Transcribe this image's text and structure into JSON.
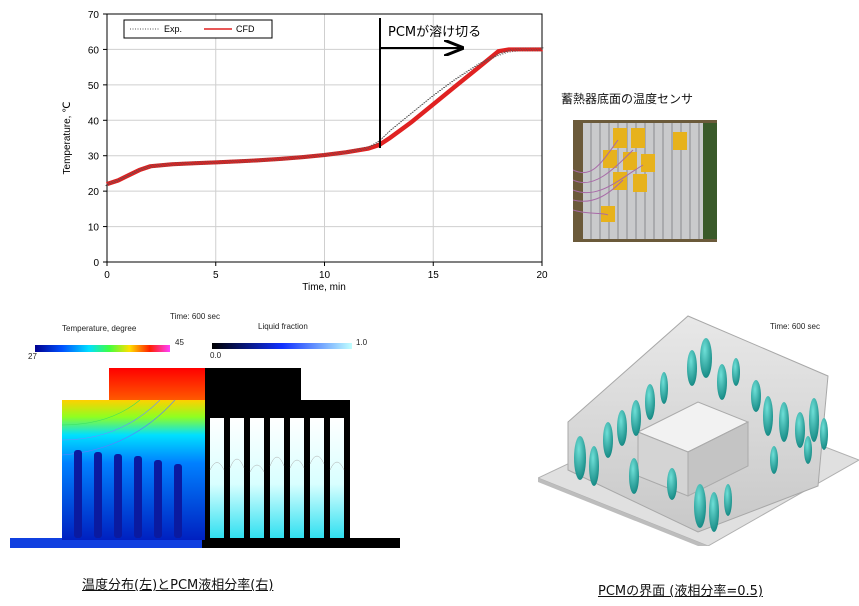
{
  "chart_data": {
    "type": "line",
    "xlabel": "Time, min",
    "ylabel": "Temperature, ℃",
    "xlim": [
      0,
      20
    ],
    "ylim": [
      0,
      70
    ],
    "xticks": [
      0,
      5,
      10,
      15,
      20
    ],
    "yticks": [
      0,
      10,
      20,
      30,
      40,
      50,
      60,
      70
    ],
    "grid": true,
    "legend_position": "top-left",
    "series": [
      {
        "name": "Exp.",
        "color": "#555555",
        "style": "dotted",
        "x": [
          0,
          0.5,
          1,
          1.5,
          2,
          3,
          4,
          5,
          6,
          7,
          8,
          9,
          10,
          11,
          12,
          12.5,
          13,
          14,
          15,
          16,
          17,
          18,
          18.5,
          19,
          20
        ],
        "y": [
          22,
          23,
          24.5,
          26,
          27,
          27.6,
          27.9,
          28.1,
          28.4,
          28.7,
          29.1,
          29.6,
          30.2,
          31,
          32.2,
          34,
          37,
          42,
          47,
          51.5,
          55.5,
          58.5,
          59.6,
          60,
          60
        ]
      },
      {
        "name": "CFD",
        "color": "#e02020",
        "style": "solid",
        "x": [
          0,
          0.5,
          1,
          1.5,
          2,
          3,
          4,
          5,
          6,
          7,
          8,
          9,
          10,
          11,
          12,
          12.5,
          13,
          14,
          15,
          16,
          17,
          18,
          18.5,
          19,
          20
        ],
        "y": [
          22,
          23,
          24.5,
          26,
          27,
          27.6,
          27.9,
          28.1,
          28.4,
          28.7,
          29.1,
          29.6,
          30.2,
          31,
          32,
          33,
          35,
          39.5,
          44.5,
          49.5,
          54.5,
          59.5,
          60,
          60,
          60
        ]
      }
    ],
    "annotation": {
      "text": "PCMが溶け切る",
      "x": 12.5
    }
  },
  "sensor_photo": {
    "title": "蓄熱器底面の温度センサ"
  },
  "temperature_panel": {
    "time_label": "Time: 600 sec",
    "temperature_legend": {
      "title": "Temperature, degree",
      "min": "27",
      "max": "45"
    },
    "liquid_legend": {
      "title": "Liquid fraction",
      "min": "0.0",
      "max": "1.0"
    },
    "caption": "温度分布(左)とPCM液相分率(右)"
  },
  "interface_panel": {
    "time_label": "Time: 600 sec",
    "caption": "PCMの界面 (液相分率=0.5)"
  },
  "colors": {
    "cfd": "#e02020",
    "exp": "#555555"
  }
}
